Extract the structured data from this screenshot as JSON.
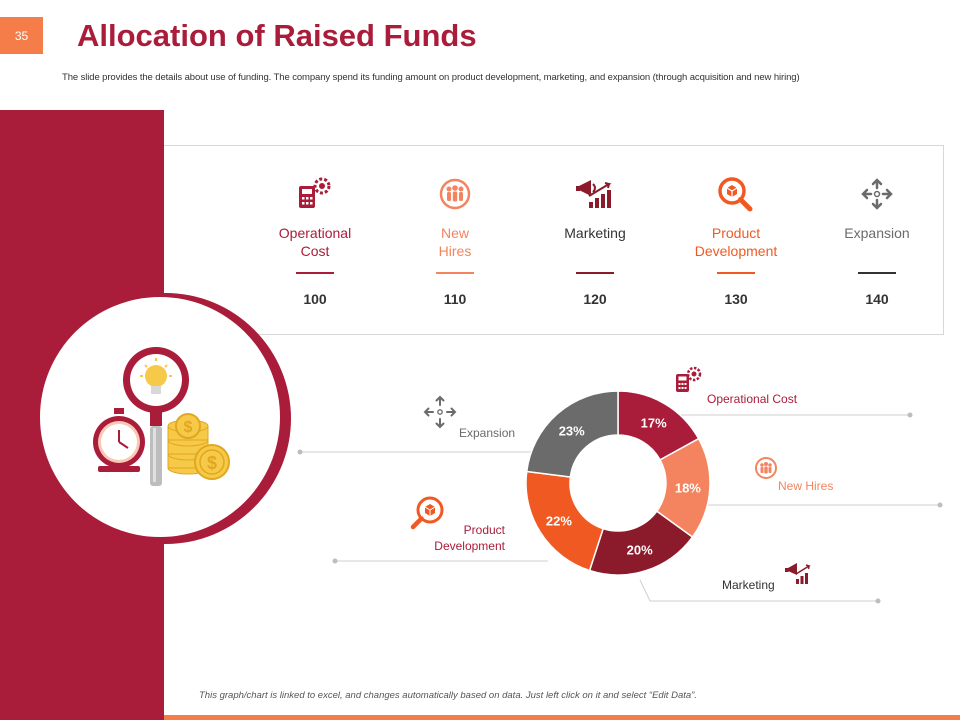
{
  "slide_number": "35",
  "title": "Allocation of Raised Funds",
  "subtitle": "The slide provides the details about use of funding. The company spend its funding amount on product development, marketing, and expansion (through acquisition and new hiring)",
  "footnote": "This graph/chart is linked to excel, and changes automatically based on data. Just left click on it and select “Edit Data”.",
  "colors": {
    "brand": "#a91c3a",
    "accent_orange": "#f47d4a",
    "operational": "#a91c3a",
    "new_hires": "#f4845f",
    "marketing": "#8b1a2b",
    "product_dev": "#f05a22",
    "expansion": "#6b6b6b"
  },
  "cards": [
    {
      "label_line1": "Operational",
      "label_line2": "Cost",
      "value": "100",
      "icon": "calculator-gear-icon"
    },
    {
      "label_line1": "New",
      "label_line2": "Hires",
      "value": "110",
      "icon": "people-circle-icon"
    },
    {
      "label_line1": "Marketing",
      "label_line2": "",
      "value": "120",
      "icon": "megaphone-chart-icon"
    },
    {
      "label_line1": "Product",
      "label_line2": "Development",
      "value": "130",
      "icon": "magnifier-box-icon"
    },
    {
      "label_line1": "Expansion",
      "label_line2": "",
      "value": "140",
      "icon": "expand-arrows-icon"
    }
  ],
  "callouts": {
    "operational": "Operational  Cost",
    "new_hires": "New Hires",
    "marketing": "Marketing",
    "product_line1": "Product",
    "product_line2": "Development",
    "expansion": "Expansion"
  },
  "chart_data": {
    "type": "pie",
    "donut": true,
    "categories": [
      "Operational Cost",
      "New Hires",
      "Marketing",
      "Product Development",
      "Expansion"
    ],
    "values": [
      17,
      18,
      20,
      22,
      23
    ],
    "value_labels": [
      "17%",
      "18%",
      "20%",
      "22%",
      "23%"
    ],
    "colors": [
      "#a91c3a",
      "#f4845f",
      "#8b1a2b",
      "#f05a22",
      "#6b6b6b"
    ]
  }
}
